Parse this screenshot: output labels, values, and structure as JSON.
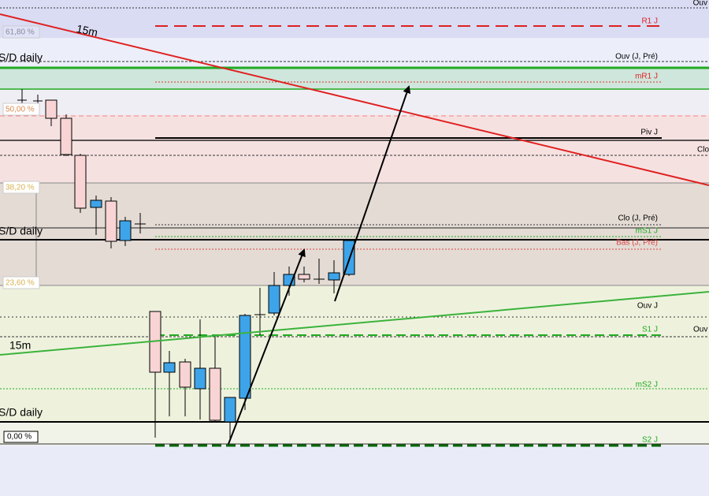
{
  "labels": {
    "top_ouv": "Ouv",
    "r1": "R1 J",
    "fib_618": "61,80 %",
    "tf_15m_a": "15m",
    "sd_daily_a": "S/D daily",
    "ouv_j_pre": "Ouv (J, Pré)",
    "mr1": "mR1 J",
    "fib_50": "50,00 %",
    "piv": "Piv J",
    "clo_right": "Clo",
    "fib_382": "38,20 %",
    "clo_j_pre": "Clo (J, Pré)",
    "ms1": "mS1 J",
    "sd_daily_b": "S/D daily",
    "bas_j_pre": "Bas (J, Pré)",
    "fib_236": "23,60 %",
    "ouv_j": "Ouv J",
    "s1": "S1 J",
    "ouv_right": "Ouv",
    "tf_15m_b": "15m",
    "ms2": "mS2 J",
    "sd_daily_c": "S/D daily",
    "fib_0": "0,00 %",
    "s2": "S2 J"
  }
}
